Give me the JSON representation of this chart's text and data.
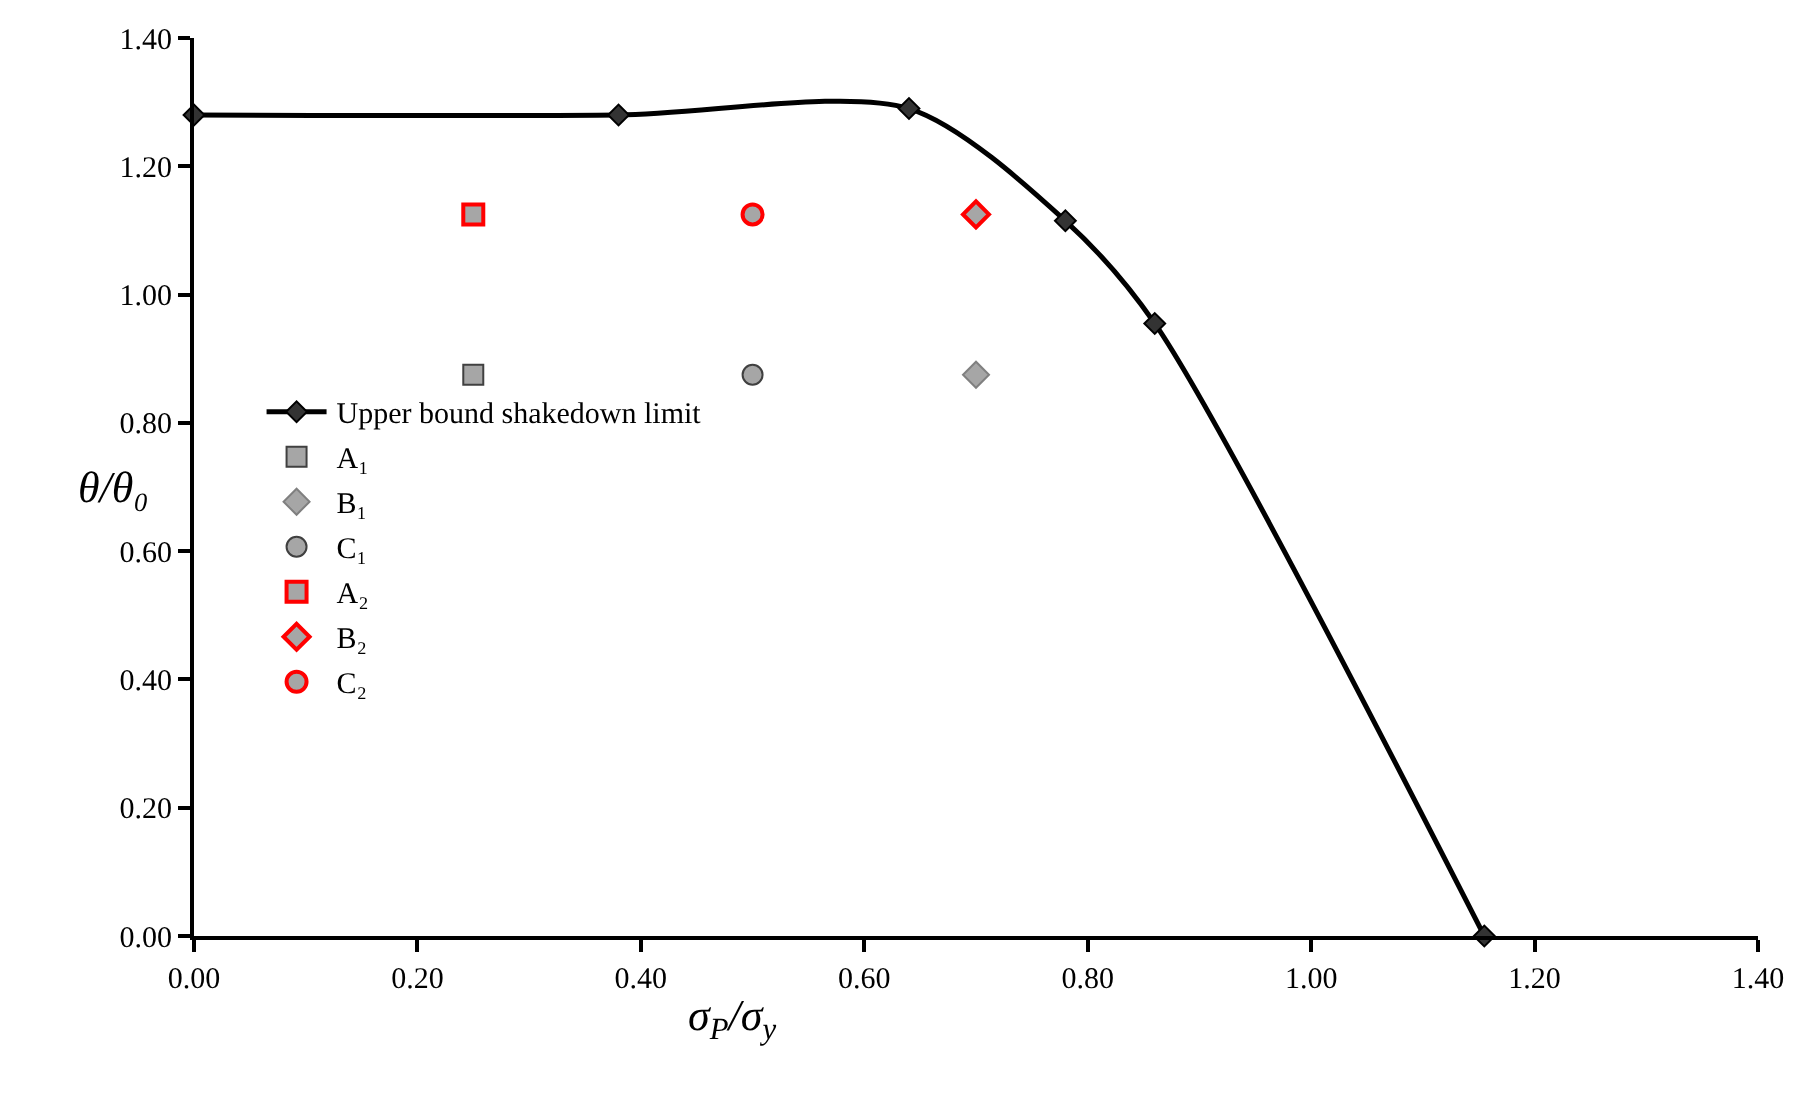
{
  "chart_data": {
    "type": "line",
    "xlabel": "σ$_{P}$/σ$_{y}$",
    "ylabel": "θ/θ₀",
    "xlim": [
      0,
      1.4
    ],
    "xticks": [
      {
        "value": 0,
        "label": "0.00"
      },
      {
        "value": 0.2,
        "label": "0.20"
      },
      {
        "value": 0.4,
        "label": "0.40"
      },
      {
        "value": 0.6,
        "label": "0.60"
      },
      {
        "value": 0.8,
        "label": "0.80"
      },
      {
        "value": 1,
        "label": "1.00"
      },
      {
        "value": 1.2,
        "label": "1.20"
      },
      {
        "value": 1.4,
        "label": "1.40"
      }
    ],
    "ylim": [
      0,
      1.4
    ],
    "yticks": [
      {
        "value": 0,
        "label": "0.00"
      },
      {
        "value": 0.2,
        "label": "0.20"
      },
      {
        "value": 0.4,
        "label": "0.40"
      },
      {
        "value": 0.6,
        "label": "0.60"
      },
      {
        "value": 0.8,
        "label": "0.80"
      },
      {
        "value": 1,
        "label": "1.00"
      },
      {
        "value": 1.2,
        "label": "1.20"
      },
      {
        "value": 1.4,
        "label": "1.40"
      }
    ],
    "grid": false,
    "legend": "left",
    "series": [
      {
        "name": "Upper bound shakedown limit",
        "marker": "diamond",
        "color": "#000000",
        "x": [
          0,
          0.38,
          0.64,
          0.78,
          0.86,
          1.155
        ],
        "values": [
          1.28,
          1.28,
          1.29,
          1.115,
          0.955,
          0
        ]
      },
      {
        "name": "A₁",
        "type": "scatter",
        "marker": "square",
        "color": "#404040",
        "x": [
          0.25
        ],
        "values": [
          0.875
        ]
      },
      {
        "name": "B₁",
        "type": "scatter",
        "marker": "diamond",
        "color": "#808080",
        "x": [
          0.7
        ],
        "values": [
          0.875
        ]
      },
      {
        "name": "C₁",
        "type": "scatter",
        "marker": "circle",
        "color": "#404040",
        "x": [
          0.5
        ],
        "values": [
          0.875
        ]
      },
      {
        "name": "A₂",
        "type": "scatter",
        "marker": "square",
        "color": "#ff0000",
        "x": [
          0.25
        ],
        "values": [
          1.125
        ]
      },
      {
        "name": "B₂",
        "type": "scatter",
        "marker": "diamond",
        "color": "#ff0000",
        "x": [
          0.7
        ],
        "values": [
          1.125
        ]
      },
      {
        "name": "C₂",
        "type": "scatter",
        "marker": "circle",
        "color": "#ff0000",
        "x": [
          0.5
        ],
        "values": [
          1.125
        ]
      }
    ]
  }
}
